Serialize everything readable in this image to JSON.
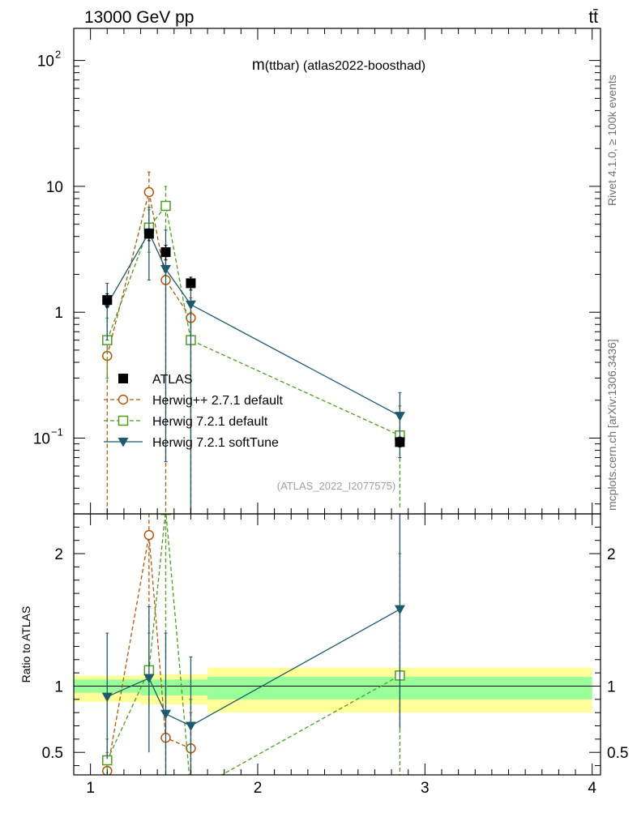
{
  "chart_data": {
    "type": "scatter",
    "energy_label": "13000 GeV pp",
    "process_label": "tt̄",
    "title": "m(ttbar) (atlas2022-boosthad)",
    "title_main": "m",
    "title_paren": "(ttbar) (atlas2022-boosthad)",
    "side_label_top": "Rivet 4.1.0, ≥ 100k events",
    "side_label_bottom": "mcplots.cern.ch [arXiv:1306.3436]",
    "annotation": "(ATLAS_2022_I2077575)",
    "ratio_ylabel": "Ratio to ATLAS",
    "x_range": [
      0.9,
      4.05
    ],
    "x_ticks": [
      1,
      2,
      3,
      4
    ],
    "x_tick_labels": [
      "1",
      "2",
      "3",
      "4"
    ],
    "main_yrange": [
      0.025,
      180
    ],
    "main_yscale": "log",
    "main_y_tick_labels": {
      "major1": "1",
      "major10": "10",
      "exp_base": "10",
      "exp_m1": "−1",
      "exp_2": "2"
    },
    "ratio_yrange": [
      0.33,
      2.3
    ],
    "ratio_y_ticks": [
      0.5,
      1,
      2
    ],
    "ratio_y_tick_labels": [
      "0.5",
      "1",
      "2"
    ],
    "bins": [
      [
        0.9,
        1.3
      ],
      [
        1.3,
        1.7
      ],
      [
        1.7,
        4.0
      ]
    ],
    "band_green": [
      [
        0.95,
        1.05
      ],
      [
        0.93,
        1.05
      ],
      [
        0.9,
        1.07
      ]
    ],
    "band_yellow": [
      [
        0.88,
        1.08
      ],
      [
        0.86,
        1.09
      ],
      [
        0.8,
        1.14
      ]
    ],
    "legend_position": "middle-left",
    "series": [
      {
        "name": "ATLAS",
        "color": "#000000",
        "marker": "square-filled",
        "line": "none",
        "x": [
          1.1,
          1.35,
          1.45,
          1.6,
          2.85
        ],
        "y": [
          1.25,
          4.2,
          3.0,
          1.7,
          0.093
        ],
        "yerr_lo": [
          1.1,
          3.7,
          2.6,
          1.5,
          0.085
        ],
        "yerr_hi": [
          1.4,
          4.6,
          3.4,
          1.9,
          0.102
        ]
      },
      {
        "name": "Herwig++ 2.7.1 default",
        "color": "#b35806",
        "marker": "circle-open",
        "line": "dashed",
        "x": [
          1.1,
          1.35,
          1.45,
          1.6
        ],
        "y": [
          0.45,
          9.0,
          1.8,
          0.9
        ],
        "yerr_lo": [
          0.001,
          5.0,
          0.001,
          0.001
        ],
        "yerr_hi": [
          0.6,
          13.0,
          3.2,
          1.3
        ],
        "ratio": [
          0.36,
          2.14,
          0.61,
          0.53
        ],
        "ratio_err_lo": [
          0.2,
          1.1,
          0.001,
          0.001
        ],
        "ratio_err_hi": [
          0.5,
          2.5,
          1.0,
          0.8
        ]
      },
      {
        "name": "Herwig 7.2.1 default",
        "color": "#4d9e1f",
        "marker": "square-open",
        "line": "dashed",
        "x": [
          1.1,
          1.35,
          1.45,
          1.6,
          2.85
        ],
        "y": [
          0.6,
          4.7,
          7.0,
          0.6,
          0.105
        ],
        "yerr_lo": [
          0.3,
          3.0,
          4.5,
          0.001,
          0.028
        ],
        "yerr_hi": [
          0.9,
          6.5,
          10.0,
          1.0,
          0.18
        ],
        "ratio": [
          0.44,
          1.12,
          2.33,
          0.2,
          1.08
        ],
        "ratio_err_lo": [
          0.3,
          0.8,
          1.2,
          0.001,
          0.3
        ],
        "ratio_err_hi": [
          0.6,
          1.4,
          2.6,
          0.9,
          2.0
        ]
      },
      {
        "name": "Herwig 7.2.1 softTune",
        "color": "#1d5a6e",
        "marker": "triangle-down-filled",
        "line": "solid",
        "x": [
          1.1,
          1.35,
          1.45,
          1.6,
          2.85
        ],
        "y": [
          1.15,
          4.3,
          2.2,
          1.15,
          0.15
        ],
        "yerr_lo": [
          0.6,
          1.8,
          0.065,
          0.001,
          0.07
        ],
        "yerr_hi": [
          1.7,
          6.8,
          4.5,
          1.7,
          0.23
        ],
        "ratio": [
          0.92,
          1.06,
          0.79,
          0.7,
          1.58
        ],
        "ratio_err_lo": [
          0.45,
          0.5,
          0.3,
          0.3,
          0.68
        ],
        "ratio_err_hi": [
          1.4,
          1.6,
          1.4,
          1.22,
          2.5
        ]
      }
    ]
  }
}
